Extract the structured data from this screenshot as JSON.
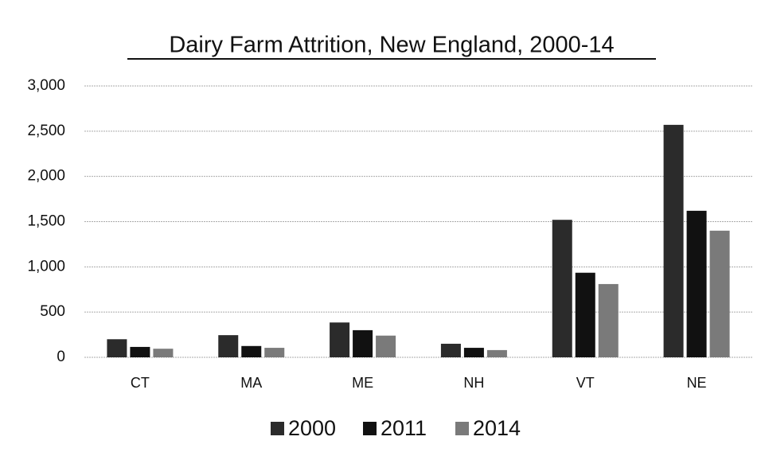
{
  "chart_data": {
    "type": "bar",
    "title": "Dairy Farm Attrition, New England, 2000-14",
    "categories": [
      "CT",
      "MA",
      "ME",
      "NH",
      "VT",
      "NE"
    ],
    "series": [
      {
        "name": "2000",
        "color": "#2b2b2b",
        "values": [
          200,
          245,
          385,
          150,
          1520,
          2570
        ]
      },
      {
        "name": "2011",
        "color": "#111111",
        "values": [
          115,
          125,
          300,
          105,
          935,
          1620
        ]
      },
      {
        "name": "2014",
        "color": "#7a7a7a",
        "values": [
          95,
          105,
          240,
          80,
          810,
          1400
        ]
      }
    ],
    "ylim": [
      0,
      3000
    ],
    "yticks": [
      0,
      500,
      {
        "value": 1000,
        "label": "1,000"
      },
      {
        "value": 1500,
        "label": "1,500"
      },
      {
        "value": 2000,
        "label": "2,000"
      },
      {
        "value": 2500,
        "label": "2,500"
      },
      {
        "value": 3000,
        "label": "3,000"
      }
    ],
    "grid": true,
    "legend": "bottom"
  }
}
